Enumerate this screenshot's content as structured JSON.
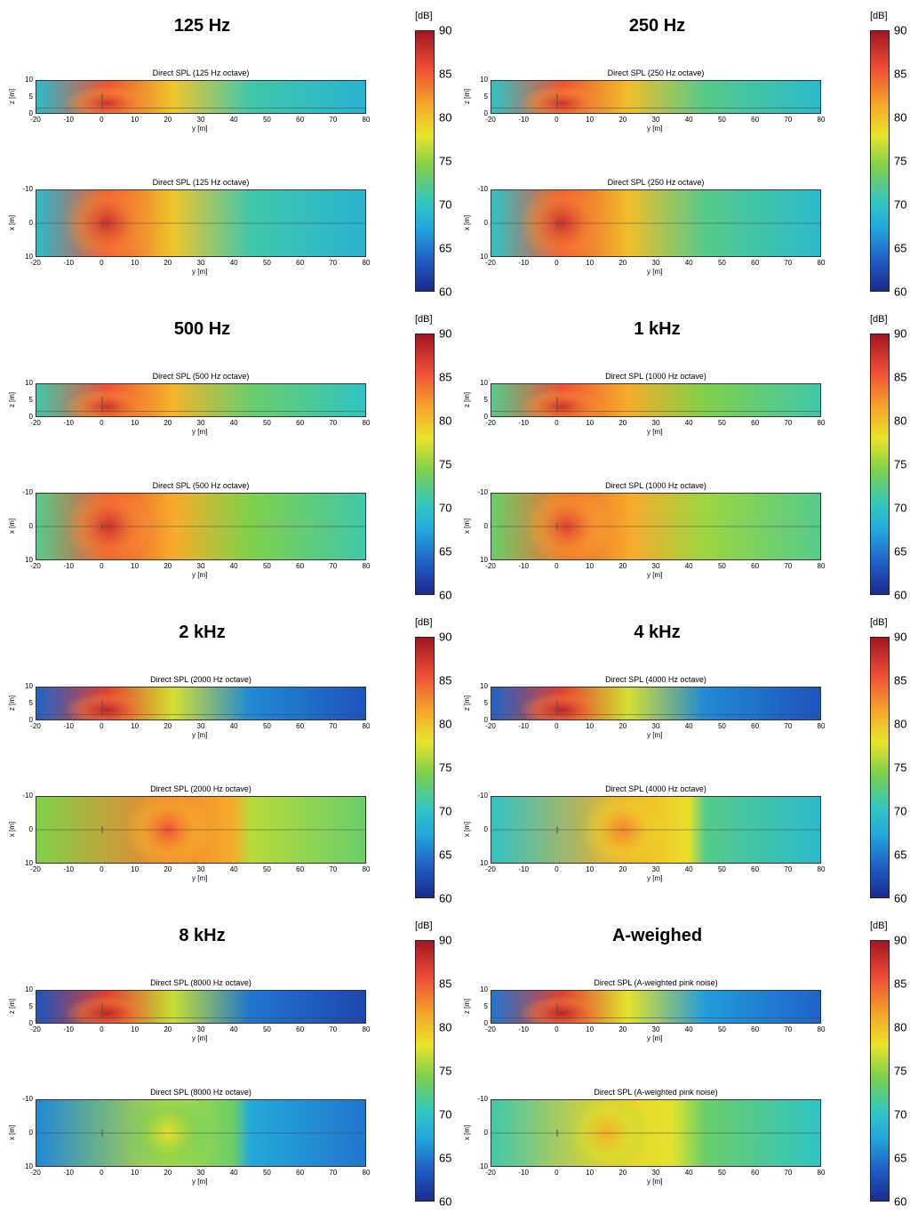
{
  "colorbar": {
    "unit": "[dB]",
    "ticks": [
      90,
      85,
      80,
      75,
      70,
      65,
      60
    ],
    "range": [
      60,
      90
    ],
    "colors": [
      "#1b2a8e",
      "#1f5ec8",
      "#22a6de",
      "#30c6c2",
      "#7fd14a",
      "#e9e42a",
      "#f7a42a",
      "#ef4b36",
      "#a11622"
    ]
  },
  "axes": {
    "y_ticks": [
      "-20",
      "-10",
      "0",
      "10",
      "20",
      "30",
      "40",
      "50",
      "60",
      "70",
      "80"
    ],
    "y_label": "y [m]",
    "z_ticks": [
      "10",
      "5",
      "0"
    ],
    "z_label": "z [m]",
    "x_ticks": [
      "-10",
      "0",
      "10"
    ],
    "x_label": "x [m]"
  },
  "panels": [
    {
      "band": "125 Hz",
      "side_title": "Direct SPL (125 Hz octave)",
      "plan_title": "Direct SPL (125 Hz octave)"
    },
    {
      "band": "250 Hz",
      "side_title": "Direct SPL (250 Hz octave)",
      "plan_title": "Direct SPL (250 Hz octave)"
    },
    {
      "band": "500 Hz",
      "side_title": "Direct SPL (500 Hz octave)",
      "plan_title": "Direct SPL (500 Hz octave)"
    },
    {
      "band": "1 kHz",
      "side_title": "Direct SPL (1000 Hz octave)",
      "plan_title": "Direct SPL (1000 Hz octave)"
    },
    {
      "band": "2 kHz",
      "side_title": "Direct SPL (2000 Hz octave)",
      "plan_title": "Direct SPL (2000 Hz octave)"
    },
    {
      "band": "4 kHz",
      "side_title": "Direct SPL (4000 Hz octave)",
      "plan_title": "Direct SPL (4000 Hz octave)"
    },
    {
      "band": "8 kHz",
      "side_title": "Direct SPL (8000 Hz octave)",
      "plan_title": "Direct SPL (8000 Hz octave)"
    },
    {
      "band": "A-weighed",
      "side_title": "Direct SPL (A-weighted pink noise)",
      "plan_title": "Direct SPL (A-weighted pink noise)"
    }
  ],
  "chart_data": [
    {
      "type": "heatmap",
      "title": "Direct SPL (125 Hz octave)",
      "xlabel": "y [m]",
      "ylabel": "z [m]",
      "xlim": [
        -20,
        80
      ],
      "ylim": [
        0,
        10
      ],
      "zlim": [
        60,
        90
      ],
      "peak_db": 86,
      "far_db": 69,
      "source_y": 1.5
    },
    {
      "type": "heatmap",
      "title": "Direct SPL (125 Hz octave)",
      "xlabel": "y [m]",
      "ylabel": "x [m]",
      "xlim": [
        -20,
        80
      ],
      "ylim": [
        -10,
        10
      ],
      "zlim": [
        60,
        90
      ],
      "peak_db": 86,
      "far_db": 69,
      "source_y": 1.5
    },
    {
      "type": "heatmap",
      "title": "Direct SPL (250 Hz octave)",
      "xlabel": "y [m]",
      "ylabel": "z [m]",
      "xlim": [
        -20,
        80
      ],
      "ylim": [
        0,
        10
      ],
      "zlim": [
        60,
        90
      ],
      "peak_db": 86,
      "far_db": 70,
      "source_y": 1.5
    },
    {
      "type": "heatmap",
      "title": "Direct SPL (250 Hz octave)",
      "xlabel": "y [m]",
      "ylabel": "x [m]",
      "xlim": [
        -20,
        80
      ],
      "ylim": [
        -10,
        10
      ],
      "zlim": [
        60,
        90
      ],
      "peak_db": 86,
      "far_db": 70,
      "source_y": 1.5
    },
    {
      "type": "heatmap",
      "title": "Direct SPL (500 Hz octave)",
      "xlabel": "y [m]",
      "ylabel": "z [m]",
      "xlim": [
        -20,
        80
      ],
      "ylim": [
        0,
        10
      ],
      "zlim": [
        60,
        90
      ],
      "peak_db": 86,
      "far_db": 71,
      "source_y": 1.5
    },
    {
      "type": "heatmap",
      "title": "Direct SPL (500 Hz octave)",
      "xlabel": "y [m]",
      "ylabel": "x [m]",
      "xlim": [
        -20,
        80
      ],
      "ylim": [
        -10,
        10
      ],
      "zlim": [
        60,
        90
      ],
      "peak_db": 86,
      "far_db": 72,
      "source_y": 2
    },
    {
      "type": "heatmap",
      "title": "Direct SPL (1000 Hz octave)",
      "xlabel": "y [m]",
      "ylabel": "z [m]",
      "xlim": [
        -20,
        80
      ],
      "ylim": [
        0,
        10
      ],
      "zlim": [
        60,
        90
      ],
      "peak_db": 86,
      "far_db": 72,
      "source_y": 1.5
    },
    {
      "type": "heatmap",
      "title": "Direct SPL (1000 Hz octave)",
      "xlabel": "y [m]",
      "ylabel": "x [m]",
      "xlim": [
        -20,
        80
      ],
      "ylim": [
        -10,
        10
      ],
      "zlim": [
        60,
        90
      ],
      "peak_db": 85,
      "far_db": 73,
      "source_y": 3
    },
    {
      "type": "heatmap",
      "title": "Direct SPL (2000 Hz octave)",
      "xlabel": "y [m]",
      "ylabel": "z [m]",
      "xlim": [
        -20,
        80
      ],
      "ylim": [
        0,
        10
      ],
      "zlim": [
        60,
        90
      ],
      "peak_db": 87,
      "far_db": 63,
      "source_y": 1.5
    },
    {
      "type": "heatmap",
      "title": "Direct SPL (2000 Hz octave)",
      "xlabel": "y [m]",
      "ylabel": "x [m]",
      "xlim": [
        -20,
        80
      ],
      "ylim": [
        -10,
        10
      ],
      "zlim": [
        60,
        90
      ],
      "peak_db": 84,
      "far_db": 74,
      "source_y": 20
    },
    {
      "type": "heatmap",
      "title": "Direct SPL (4000 Hz octave)",
      "xlabel": "y [m]",
      "ylabel": "z [m]",
      "xlim": [
        -20,
        80
      ],
      "ylim": [
        0,
        10
      ],
      "zlim": [
        60,
        90
      ],
      "peak_db": 87,
      "far_db": 63,
      "source_y": 1.5
    },
    {
      "type": "heatmap",
      "title": "Direct SPL (4000 Hz octave)",
      "xlabel": "y [m]",
      "ylabel": "x [m]",
      "xlim": [
        -20,
        80
      ],
      "ylim": [
        -10,
        10
      ],
      "zlim": [
        60,
        90
      ],
      "peak_db": 82,
      "far_db": 70,
      "source_y": 20
    },
    {
      "type": "heatmap",
      "title": "Direct SPL (8000 Hz octave)",
      "xlabel": "y [m]",
      "ylabel": "z [m]",
      "xlim": [
        -20,
        80
      ],
      "ylim": [
        0,
        10
      ],
      "zlim": [
        60,
        90
      ],
      "peak_db": 87,
      "far_db": 62,
      "source_y": 1.5
    },
    {
      "type": "heatmap",
      "title": "Direct SPL (8000 Hz octave)",
      "xlabel": "y [m]",
      "ylabel": "x [m]",
      "xlim": [
        -20,
        80
      ],
      "ylim": [
        -10,
        10
      ],
      "zlim": [
        60,
        90
      ],
      "peak_db": 77,
      "far_db": 65,
      "source_y": 20
    },
    {
      "type": "heatmap",
      "title": "Direct SPL (A-weighted pink noise)",
      "xlabel": "y [m]",
      "ylabel": "z [m]",
      "xlim": [
        -20,
        80
      ],
      "ylim": [
        0,
        10
      ],
      "zlim": [
        60,
        90
      ],
      "peak_db": 87,
      "far_db": 64,
      "source_y": 1.5
    },
    {
      "type": "heatmap",
      "title": "Direct SPL (A-weighted pink noise)",
      "xlabel": "y [m]",
      "ylabel": "x [m]",
      "xlim": [
        -20,
        80
      ],
      "ylim": [
        -10,
        10
      ],
      "zlim": [
        60,
        90
      ],
      "peak_db": 80,
      "far_db": 71,
      "source_y": 15
    }
  ]
}
